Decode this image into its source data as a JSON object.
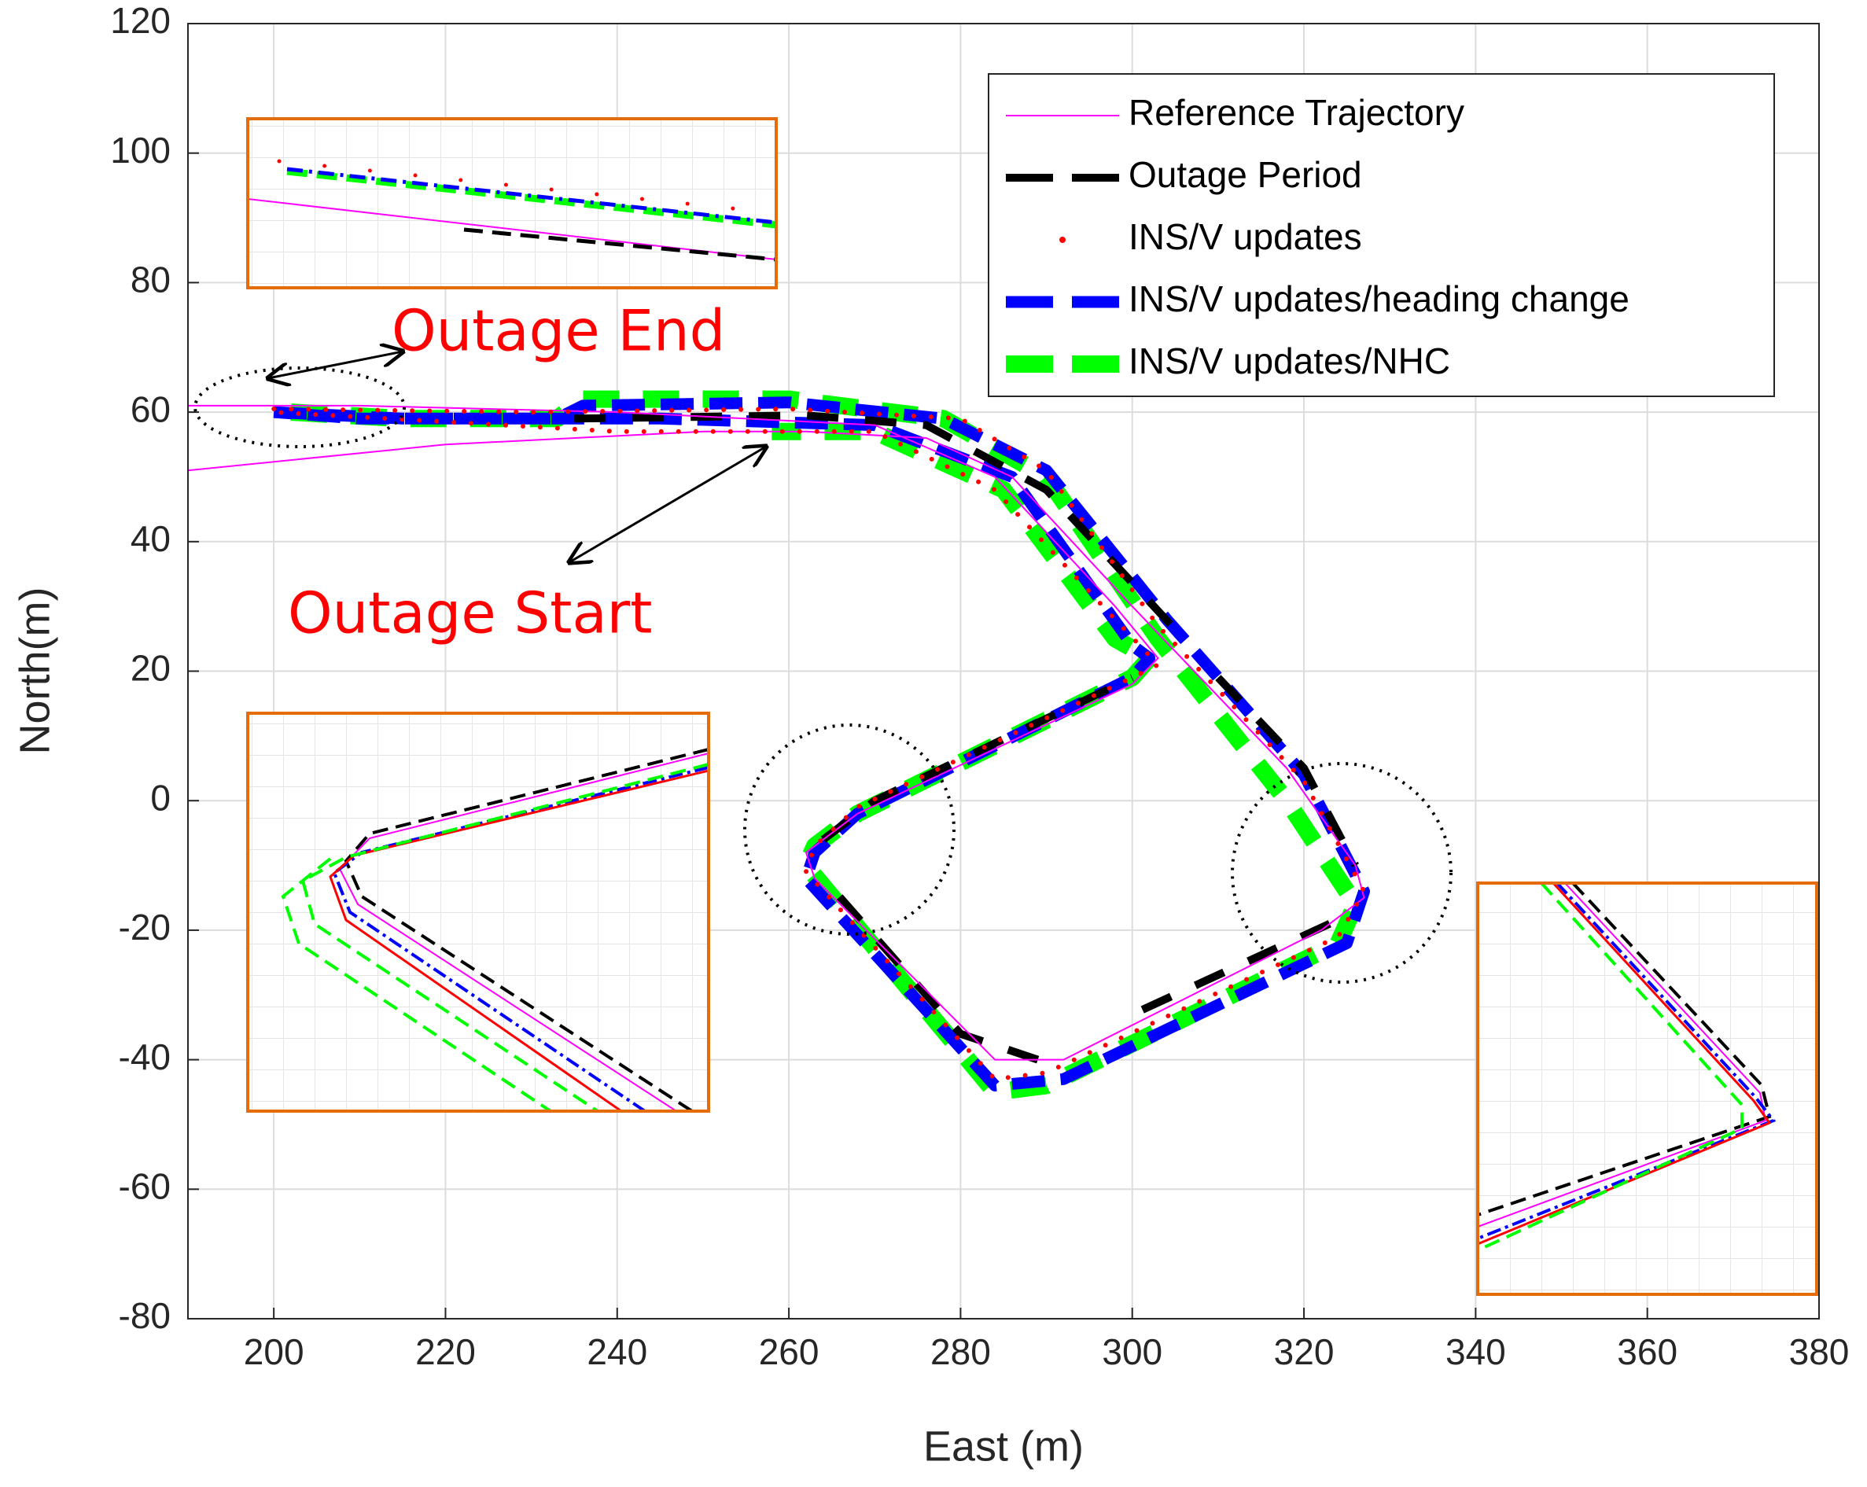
{
  "chart_data": {
    "type": "line",
    "xlabel": "East (m)",
    "ylabel": "North(m)",
    "xlim": [
      190,
      380
    ],
    "ylim": [
      -80,
      120
    ],
    "xticks": [
      200,
      220,
      240,
      260,
      280,
      300,
      320,
      340,
      360,
      380
    ],
    "yticks": [
      -80,
      -60,
      -40,
      -20,
      0,
      20,
      40,
      60,
      80,
      100,
      120
    ],
    "grid": true,
    "legend_loc": "upper right",
    "annotations": [
      "Outage End",
      "Outage Start"
    ],
    "series": [
      {
        "name": "Reference Trajectory",
        "color": "#ff00ff",
        "linestyle": "solid",
        "x": [
          190,
          220,
          250,
          262,
          276,
          286,
          300,
          318,
          326,
          327,
          322,
          292,
          284,
          263,
          262,
          268,
          300,
          303,
          298,
          284,
          270,
          240,
          210,
          190
        ],
        "values": [
          51,
          55,
          57,
          57,
          56,
          50,
          30,
          5,
          -10,
          -15,
          -20,
          -40,
          -40,
          -12,
          -8,
          -2,
          18,
          22,
          30,
          50,
          58,
          60,
          61,
          61
        ]
      },
      {
        "name": "Outage Period",
        "color": "#000000",
        "linestyle": "dashed",
        "x": [
          235,
          262,
          276,
          290,
          306,
          null,
          310,
          320,
          326,
          null,
          323,
          300,
          null,
          289,
          280,
          264,
          null,
          264,
          270,
          300
        ],
        "values": [
          59,
          59.5,
          58,
          48,
          25,
          null,
          19,
          5,
          -10,
          null,
          -19,
          -33,
          null,
          -40,
          -36,
          -12,
          null,
          -6,
          0,
          19
        ]
      },
      {
        "name": "INS/V updates",
        "color": "#ff0000",
        "linestyle": "dotted",
        "x": [
          200,
          230,
          260,
          280,
          290,
          303,
          320,
          327,
          324,
          290,
          284,
          262,
          263,
          268,
          300,
          303,
          298,
          284,
          270,
          240,
          200
        ],
        "values": [
          60.5,
          60,
          60.5,
          59,
          51,
          27,
          3,
          -14,
          -21,
          -42,
          -43,
          -11,
          -7,
          -1,
          19,
          21,
          28,
          48,
          57,
          57,
          60
        ]
      },
      {
        "name": "INS/V updates/heading change",
        "color": "#0000ff",
        "linestyle": "dashed",
        "x": [
          200,
          215,
          233,
          236,
          260,
          278,
          290,
          304,
          320,
          327,
          325,
          292,
          284,
          262,
          263,
          268,
          300,
          302,
          300,
          286,
          270,
          245,
          225,
          210,
          200
        ],
        "values": [
          60,
          59,
          59,
          61,
          61.5,
          59,
          51,
          28,
          4,
          -14,
          -22,
          -43,
          -44,
          -12,
          -8,
          -2,
          19,
          22,
          24,
          50,
          58,
          59,
          59,
          59,
          60
        ]
      },
      {
        "name": "INS/V updates/NHC",
        "color": "#00ff00",
        "linestyle": "dashed",
        "x": [
          202,
          215,
          233,
          236,
          260,
          278,
          290,
          303,
          318,
          326,
          324,
          290,
          284,
          262,
          263,
          268,
          300,
          302,
          298,
          285,
          270,
          258
        ],
        "values": [
          60,
          59,
          59,
          62,
          62,
          59,
          50,
          25,
          0,
          -16,
          -22,
          -44,
          -45,
          -10,
          -7,
          -2,
          19,
          22,
          25,
          48,
          57,
          57
        ]
      }
    ]
  }
}
